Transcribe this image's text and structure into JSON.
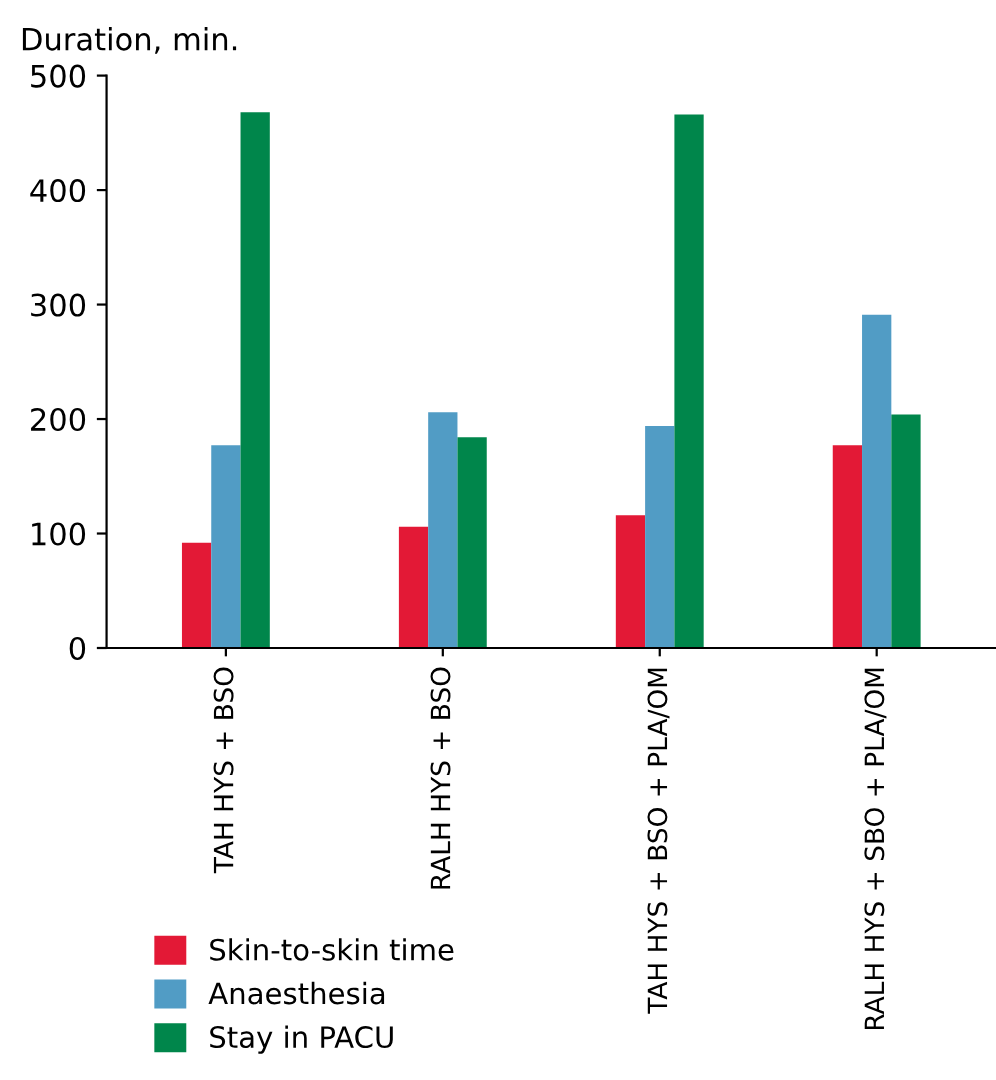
{
  "chart_data": {
    "type": "bar",
    "ylabel": "Duration, min.",
    "categories": [
      "TAH HYS + BSO",
      "RALH HYS + BSO",
      "TAH HYS + BSO + PLA/OM",
      "RALH HYS + SBO + PLA/OM"
    ],
    "series": [
      {
        "name": "Skin-to-skin time",
        "color": "#e31936",
        "values": [
          92,
          106,
          116,
          177
        ]
      },
      {
        "name": "Anaesthesia",
        "color": "#519cc5",
        "values": [
          177,
          206,
          194,
          291
        ]
      },
      {
        "name": "Stay in PACU",
        "color": "#00864b",
        "values": [
          468,
          184,
          466,
          204
        ]
      }
    ],
    "ylim": [
      0,
      500
    ],
    "yticks": [
      0,
      100,
      200,
      300,
      400,
      500
    ],
    "grid": false,
    "legend": "bottom left"
  }
}
